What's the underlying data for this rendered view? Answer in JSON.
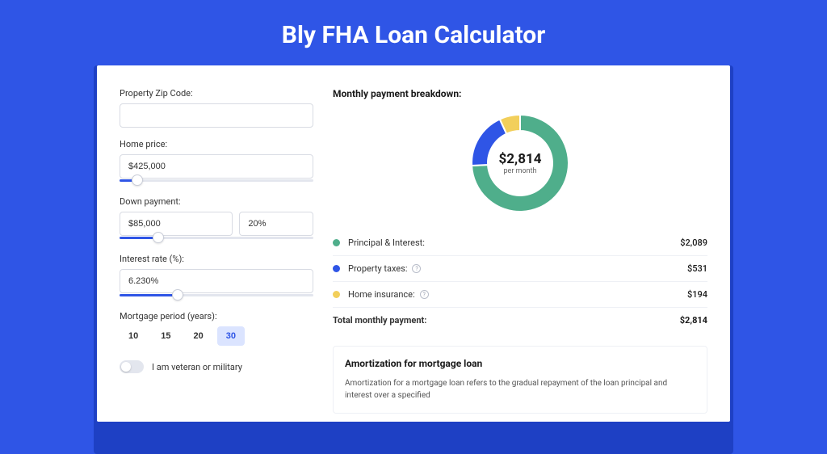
{
  "page": {
    "title": "Bly FHA Loan Calculator",
    "bg_color": "#2f55e6"
  },
  "form": {
    "zip": {
      "label": "Property Zip Code:",
      "value": ""
    },
    "home_price": {
      "label": "Home price:",
      "value": "$425,000",
      "slider_pct": 9
    },
    "down_payment": {
      "label": "Down payment:",
      "value_amount": "$85,000",
      "value_pct": "20%",
      "slider_pct": 20
    },
    "interest": {
      "label": "Interest rate (%):",
      "value": "6.230%",
      "slider_pct": 30
    },
    "period": {
      "label": "Mortgage period (years):",
      "options": [
        "10",
        "15",
        "20",
        "30"
      ],
      "active": "30"
    },
    "veteran": {
      "label": "I am veteran or military"
    }
  },
  "breakdown": {
    "title": "Monthly payment breakdown:",
    "center_amount": "$2,814",
    "center_sub": "per month",
    "donut": {
      "slices": [
        {
          "label": "Principal & Interest:",
          "value": "$2,089",
          "color": "#4fae8b",
          "pct": 74.2
        },
        {
          "label": "Property taxes:",
          "value": "$531",
          "color": "#2f55e6",
          "pct": 18.9,
          "info": true
        },
        {
          "label": "Home insurance:",
          "value": "$194",
          "color": "#f2cf5b",
          "pct": 6.9,
          "info": true
        }
      ],
      "ring_bg": "#f2f3f7"
    },
    "total": {
      "label": "Total monthly payment:",
      "value": "$2,814"
    }
  },
  "amortization": {
    "title": "Amortization for mortgage loan",
    "text": "Amortization for a mortgage loan refers to the gradual repayment of the loan principal and interest over a specified"
  }
}
